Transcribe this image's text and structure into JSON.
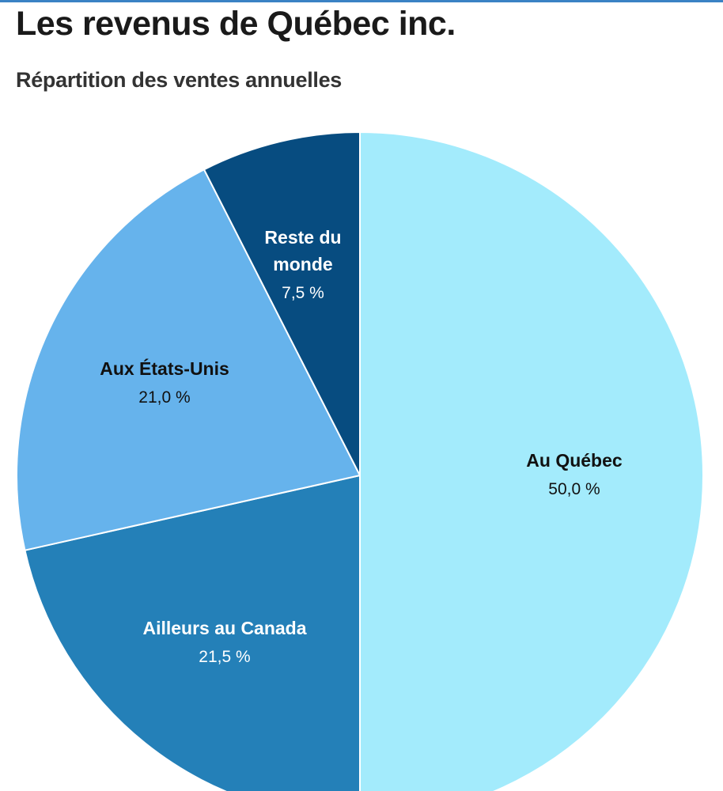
{
  "title": "Les revenus de Québec inc.",
  "subtitle": "Répartition des ventes annuelles",
  "chart_data": {
    "type": "pie",
    "title": "Les revenus de Québec inc.",
    "subtitle": "Répartition des ventes annuelles",
    "unit": "%",
    "start": "12 o'clock",
    "direction": "clockwise",
    "slices": [
      {
        "label": "Au Québec",
        "label_lines": [
          "Au Québec"
        ],
        "value": 50.0,
        "value_text": "50,0 %",
        "color": "#a3ebfc",
        "text_color": "#111111"
      },
      {
        "label": "Ailleurs au Canada",
        "label_lines": [
          "Ailleurs au Canada"
        ],
        "value": 21.5,
        "value_text": "21,5 %",
        "color": "#2480b8",
        "text_color": "#ffffff"
      },
      {
        "label": "Aux États-Unis",
        "label_lines": [
          "Aux États-Unis"
        ],
        "value": 21.0,
        "value_text": "21,0 %",
        "color": "#66b3ec",
        "text_color": "#111111"
      },
      {
        "label": "Reste du monde",
        "label_lines": [
          "Reste du",
          "monde"
        ],
        "value": 7.5,
        "value_text": "7,5 %",
        "color": "#074c80",
        "text_color": "#ffffff"
      }
    ]
  }
}
